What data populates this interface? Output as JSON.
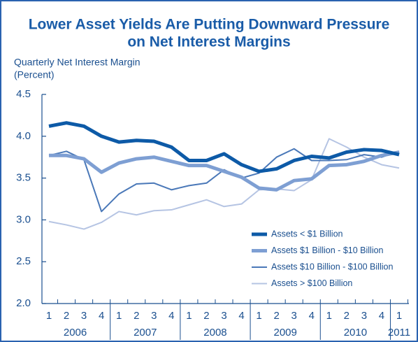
{
  "chart_data": {
    "type": "line",
    "title": [
      "Lower Asset Yields Are Putting Downward Pressure",
      "on Net Interest Margins"
    ],
    "y_label": [
      "Quarterly Net Interest Margin",
      "(Percent)"
    ],
    "categories": [
      "1",
      "2",
      "3",
      "4",
      "1",
      "2",
      "3",
      "4",
      "1",
      "2",
      "3",
      "4",
      "1",
      "2",
      "3",
      "4",
      "1",
      "2",
      "3",
      "4",
      "1"
    ],
    "years": [
      "2006",
      "2007",
      "2008",
      "2009",
      "2010",
      "2011"
    ],
    "ylim": [
      2,
      4.5
    ],
    "yticks": [
      {
        "value": 2,
        "label": "2.0"
      },
      2.5,
      {
        "value": 3,
        "label": "3.0"
      },
      3.5,
      {
        "value": 4,
        "label": "4.0"
      },
      4.5
    ],
    "legend": "lower right",
    "series": [
      {
        "name": "Assets < $1 Billion",
        "color": "#0d5aa7",
        "width": 5,
        "values": [
          4.12,
          4.16,
          4.12,
          4.0,
          3.93,
          3.95,
          3.94,
          3.87,
          3.71,
          3.71,
          3.79,
          3.66,
          3.58,
          3.61,
          3.71,
          3.76,
          3.74,
          3.81,
          3.84,
          3.83,
          3.78
        ]
      },
      {
        "name": "Assets $1 Billion - $10 Billion",
        "color": "#7e9fd3",
        "width": 5,
        "values": [
          3.77,
          3.77,
          3.73,
          3.57,
          3.68,
          3.73,
          3.75,
          3.7,
          3.65,
          3.65,
          3.58,
          3.51,
          3.38,
          3.36,
          3.47,
          3.49,
          3.65,
          3.66,
          3.7,
          3.77,
          3.81
        ]
      },
      {
        "name": "Assets $10 Billion - $100 Billion",
        "color": "#4a78b8",
        "width": 2,
        "values": [
          3.77,
          3.82,
          3.72,
          3.1,
          3.31,
          3.43,
          3.44,
          3.36,
          3.41,
          3.44,
          3.6,
          3.5,
          3.56,
          3.75,
          3.85,
          3.71,
          3.71,
          3.72,
          3.78,
          3.75,
          3.82
        ]
      },
      {
        "name": "Assets > $100 Billion",
        "color": "#b5c4e3",
        "width": 2,
        "values": [
          2.98,
          2.94,
          2.89,
          2.97,
          3.1,
          3.06,
          3.11,
          3.12,
          3.18,
          3.24,
          3.16,
          3.19,
          3.36,
          3.37,
          3.35,
          3.48,
          3.97,
          3.87,
          3.75,
          3.66,
          3.62
        ]
      }
    ]
  }
}
